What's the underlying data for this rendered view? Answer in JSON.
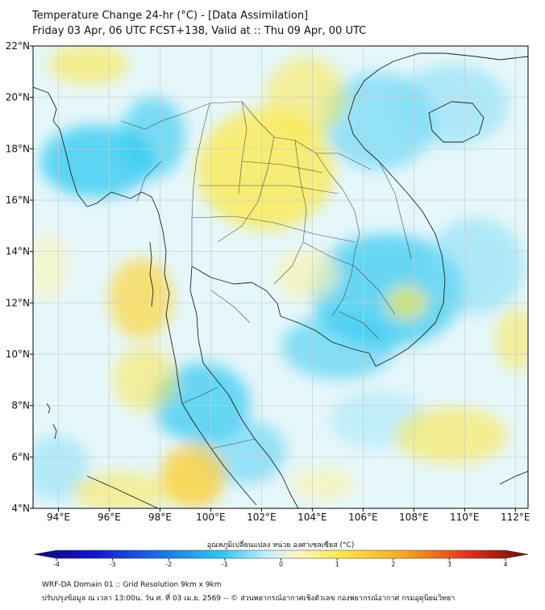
{
  "title": {
    "line1": "Temperature Change 24-hr (°C) - [Data Assimilation]",
    "line2": "Friday 03 Apr, 06 UTC FCST+138, Valid at :: Thu 09 Apr, 00 UTC"
  },
  "axes": {
    "lat_ticks": [
      "22°N",
      "20°N",
      "18°N",
      "16°N",
      "14°N",
      "12°N",
      "10°N",
      "8°N",
      "6°N",
      "4°N"
    ],
    "lon_ticks": [
      "94°E",
      "96°E",
      "98°E",
      "100°E",
      "102°E",
      "104°E",
      "106°E",
      "108°E",
      "110°E",
      "112°E"
    ],
    "lat_range": [
      4,
      22
    ],
    "lon_range": [
      93,
      112.5
    ]
  },
  "colorbar": {
    "label": "อุณหภูมิเปลี่ยนแปลง หน่วย องศาเซลเซียส (°C)",
    "ticks": [
      "-4",
      "-3",
      "-2",
      "-1",
      "0",
      "1",
      "2",
      "3",
      "4"
    ],
    "min": -4,
    "max": 4
  },
  "footer": {
    "line1": "WRF-DA Domain 01 :: Grid Resolution 9km x 9km",
    "line2": "ปรับปรุงข้อมูล ณ เวลา 13:00น. วัน ศ. ที่ 03 เม.ย. 2569 -- © ส่วนพยากรณ์อากาศเชิงตัวเลข กองพยากรณ์อากาศ กรมอุตุนิยมวิทยา"
  },
  "colors": {
    "cool": "#2ec8f0",
    "cool_light": "#a6e8fa",
    "warm": "#fbe84a",
    "warm_light": "#fbf3b0",
    "coast": "#222222",
    "grid": "#cccccc"
  }
}
